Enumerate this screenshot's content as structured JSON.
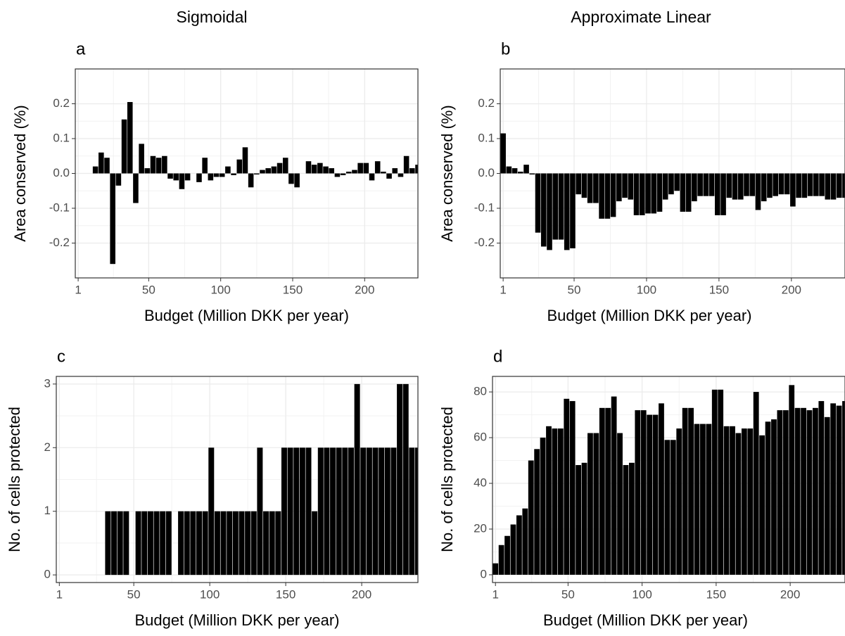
{
  "chart_data": [
    {
      "type": "bar",
      "title": "Sigmoidal",
      "panel_label": "a",
      "x_label": "Budget (Million DKK per year)",
      "y_label": "Area conserved (%)",
      "color": "#000000",
      "grid": true,
      "x": [
        1,
        5,
        9,
        13,
        17,
        21,
        25,
        29,
        33,
        37,
        41,
        45,
        49,
        53,
        57,
        61,
        65,
        69,
        73,
        77,
        81,
        85,
        89,
        93,
        97,
        101,
        105,
        109,
        113,
        117,
        121,
        125,
        129,
        133,
        137,
        141,
        145,
        149,
        153,
        157,
        161,
        165,
        169,
        173,
        177,
        181,
        185,
        189,
        193,
        197,
        201,
        205,
        209,
        213,
        217,
        221,
        225,
        229,
        233,
        237
      ],
      "values": [
        0,
        0,
        0,
        0.02,
        0.06,
        0.045,
        -0.26,
        -0.035,
        0.155,
        0.205,
        -0.085,
        0.085,
        0.015,
        0.05,
        0.045,
        0.05,
        -0.015,
        -0.02,
        -0.045,
        -0.02,
        0.0,
        -0.025,
        0.045,
        -0.02,
        -0.01,
        -0.01,
        0.02,
        -0.005,
        0.04,
        0.075,
        -0.04,
        -0.003,
        0.01,
        0.015,
        0.02,
        0.03,
        0.045,
        -0.03,
        -0.04,
        0.0,
        0.035,
        0.025,
        0.03,
        0.02,
        0.015,
        -0.01,
        -0.005,
        0.005,
        0.01,
        0.03,
        0.03,
        -0.02,
        0.035,
        0.005,
        -0.015,
        0.015,
        -0.01,
        0.05,
        0.015,
        0.025
      ],
      "xlim": [
        -1,
        237
      ],
      "xticks": [
        1,
        50,
        100,
        150,
        200
      ],
      "ylim": [
        -0.3,
        0.3
      ],
      "yticks": [
        -0.2,
        -0.1,
        {
          "value": 0,
          "label": "0.0"
        },
        0.1,
        0.2
      ]
    },
    {
      "type": "bar",
      "title": "Approximate Linear",
      "panel_label": "b",
      "x_label": "Budget (Million DKK per year)",
      "y_label": "Area conserved (%)",
      "color": "#000000",
      "grid": true,
      "x": [
        1,
        5,
        9,
        13,
        17,
        21,
        25,
        29,
        33,
        37,
        41,
        45,
        49,
        53,
        57,
        61,
        65,
        69,
        73,
        77,
        81,
        85,
        89,
        93,
        97,
        101,
        105,
        109,
        113,
        117,
        121,
        125,
        129,
        133,
        137,
        141,
        145,
        149,
        153,
        157,
        161,
        165,
        169,
        173,
        177,
        181,
        185,
        189,
        193,
        197,
        201,
        205,
        209,
        213,
        217,
        221,
        225,
        229,
        233,
        237
      ],
      "values": [
        0.115,
        0.02,
        0.015,
        0.005,
        0.025,
        -0.003,
        -0.17,
        -0.21,
        -0.22,
        -0.19,
        -0.19,
        -0.22,
        -0.215,
        -0.06,
        -0.07,
        -0.085,
        -0.085,
        -0.13,
        -0.13,
        -0.125,
        -0.08,
        -0.07,
        -0.075,
        -0.12,
        -0.12,
        -0.115,
        -0.115,
        -0.11,
        -0.075,
        -0.06,
        -0.05,
        -0.11,
        -0.11,
        -0.08,
        -0.065,
        -0.065,
        -0.065,
        -0.12,
        -0.12,
        -0.07,
        -0.075,
        -0.075,
        -0.065,
        -0.065,
        -0.105,
        -0.08,
        -0.07,
        -0.065,
        -0.06,
        -0.06,
        -0.095,
        -0.07,
        -0.07,
        -0.065,
        -0.065,
        -0.065,
        -0.075,
        -0.075,
        -0.07,
        -0.07
      ],
      "xlim": [
        -1,
        237
      ],
      "xticks": [
        1,
        50,
        100,
        150,
        200
      ],
      "ylim": [
        -0.3,
        0.3
      ],
      "yticks": [
        -0.2,
        -0.1,
        {
          "value": 0,
          "label": "0.0"
        },
        0.1,
        0.2
      ]
    },
    {
      "type": "bar",
      "panel_label": "c",
      "x_label": "Budget (Million DKK per year)",
      "y_label": "No. of cells protected",
      "color": "#000000",
      "grid": true,
      "x": [
        1,
        5,
        9,
        13,
        17,
        21,
        25,
        29,
        33,
        37,
        41,
        45,
        49,
        53,
        57,
        61,
        65,
        69,
        73,
        77,
        81,
        85,
        89,
        93,
        97,
        101,
        105,
        109,
        113,
        117,
        121,
        125,
        129,
        133,
        137,
        141,
        145,
        149,
        153,
        157,
        161,
        165,
        169,
        173,
        177,
        181,
        185,
        189,
        193,
        197,
        201,
        205,
        209,
        213,
        217,
        221,
        225,
        229,
        233,
        237
      ],
      "values": [
        0,
        0,
        0,
        0,
        0,
        0,
        0,
        0,
        1,
        1,
        1,
        1,
        0,
        1,
        1,
        1,
        1,
        1,
        1,
        0,
        1,
        1,
        1,
        1,
        1,
        2,
        1,
        1,
        1,
        1,
        1,
        1,
        1,
        2,
        1,
        1,
        1,
        2,
        2,
        2,
        2,
        2,
        1,
        2,
        2,
        2,
        2,
        2,
        2,
        3,
        2,
        2,
        2,
        2,
        2,
        2,
        3,
        3,
        2,
        2
      ],
      "xlim": [
        -1,
        237
      ],
      "xticks": [
        1,
        50,
        100,
        150,
        200
      ],
      "ylim": [
        -0.12,
        3.12
      ],
      "yticks": [
        0,
        1,
        2,
        3
      ]
    },
    {
      "type": "bar",
      "panel_label": "d",
      "x_label": "Budget (Million DKK per year)",
      "y_label": "No. of cells protected",
      "color": "#000000",
      "grid": true,
      "x": [
        1,
        5,
        9,
        13,
        17,
        21,
        25,
        29,
        33,
        37,
        41,
        45,
        49,
        53,
        57,
        61,
        65,
        69,
        73,
        77,
        81,
        85,
        89,
        93,
        97,
        101,
        105,
        109,
        113,
        117,
        121,
        125,
        129,
        133,
        137,
        141,
        145,
        149,
        153,
        157,
        161,
        165,
        169,
        173,
        177,
        181,
        185,
        189,
        193,
        197,
        201,
        205,
        209,
        213,
        217,
        221,
        225,
        229,
        233,
        237
      ],
      "values": [
        5,
        13,
        17,
        22,
        26,
        29,
        50,
        55,
        60,
        65,
        64,
        64,
        77,
        76,
        48,
        49,
        62,
        62,
        73,
        73,
        78,
        62,
        48,
        49,
        72,
        72,
        70,
        70,
        75,
        59,
        59,
        64,
        73,
        73,
        66,
        66,
        66,
        81,
        81,
        65,
        65,
        62,
        64,
        64,
        80,
        61,
        67,
        68,
        72,
        72,
        83,
        73,
        73,
        72,
        73,
        76,
        69,
        75,
        74,
        76
      ],
      "xlim": [
        -1,
        237
      ],
      "xticks": [
        1,
        50,
        100,
        150,
        200
      ],
      "ylim": [
        -3.4,
        86.8
      ],
      "yticks": [
        0,
        20,
        40,
        60,
        80
      ]
    }
  ]
}
